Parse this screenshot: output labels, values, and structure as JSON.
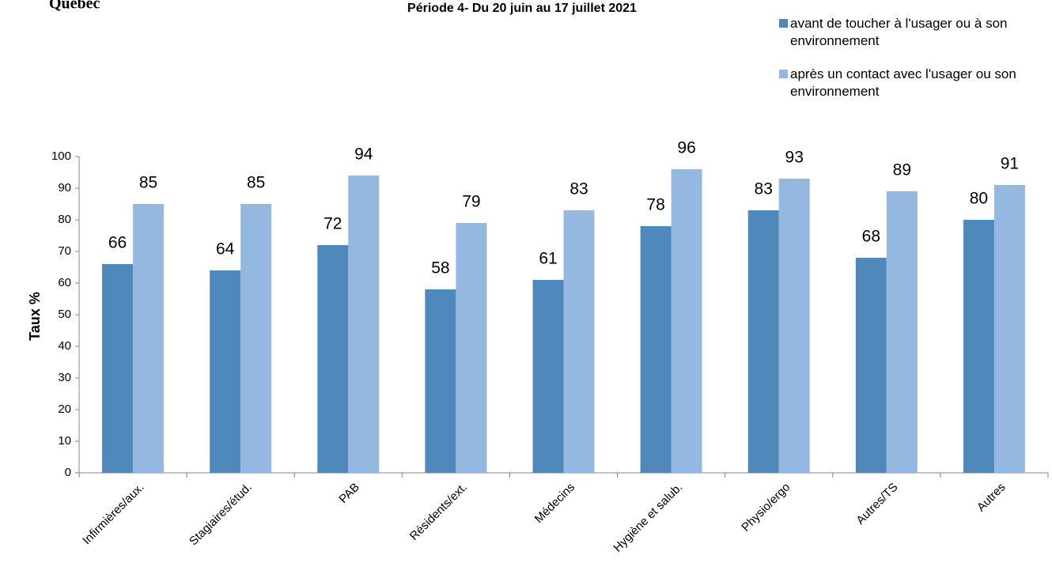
{
  "chart_data": {
    "type": "bar",
    "logo_text": "Québec",
    "title": "Période 4- Du 20 juin au 17 juillet 2021",
    "y_label": "Taux %",
    "categories": [
      "Infirmières/aux.",
      "Stagiaires/étud.",
      "PAB",
      "Résidents/ext.",
      "Médecins",
      "Hygiène et salub.",
      "Physio/ergo",
      "Autres/TS",
      "Autres"
    ],
    "series": [
      {
        "name": "avant de toucher à l'usager ou à son environnement",
        "color": "#4f88bb",
        "values": [
          66,
          64,
          72,
          58,
          61,
          78,
          83,
          68,
          80
        ]
      },
      {
        "name": "après un contact avec l'usager ou son environnement",
        "color": "#95b8e0",
        "values": [
          85,
          85,
          94,
          79,
          83,
          96,
          93,
          89,
          91
        ]
      }
    ],
    "ylim": [
      0,
      100
    ],
    "yticks": [
      0,
      10,
      20,
      30,
      40,
      50,
      60,
      70,
      80,
      90,
      100
    ],
    "legend": "top-right",
    "grid": false
  }
}
